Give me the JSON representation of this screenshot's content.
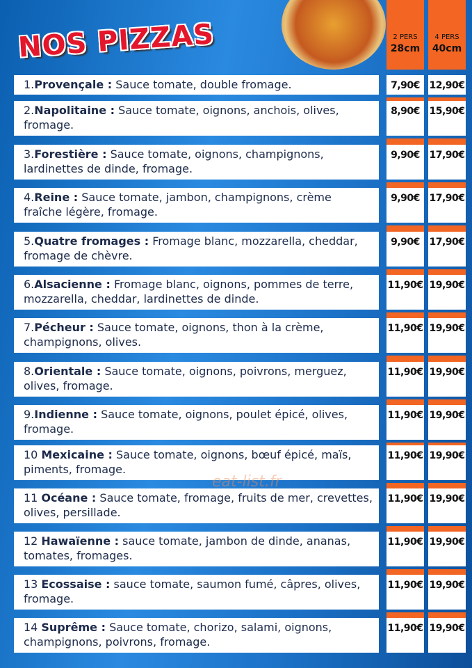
{
  "header": {
    "title": "NOS PIZZAS",
    "columns": [
      {
        "line1": "2 PERS",
        "line2": "28cm"
      },
      {
        "line1": "4 PERS",
        "line2": "40cm"
      }
    ]
  },
  "watermark": "eat-list.fr",
  "items": [
    {
      "number": "1.",
      "name": "Provençale :",
      "description": "Sauce tomate, double fromage.",
      "price_2": "7,90€",
      "price_4": "12,90€"
    },
    {
      "number": "2.",
      "name": "Napolitaine :",
      "description": "Sauce tomate, oignons, anchois, olives, fromage.",
      "price_2": "8,90€",
      "price_4": "15,90€"
    },
    {
      "number": "3.",
      "name": "Forestière :",
      "description": "Sauce tomate, oignons, champignons, lardinettes de dinde, fromage.",
      "price_2": "9,90€",
      "price_4": "17,90€"
    },
    {
      "number": "4.",
      "name": "Reine :",
      "description": "Sauce tomate, jambon, champignons, crème fraîche légère, fromage.",
      "price_2": "9,90€",
      "price_4": "17,90€"
    },
    {
      "number": "5.",
      "name": "Quatre fromages :",
      "description": "Fromage blanc, mozzarella, cheddar, fromage de chèvre.",
      "price_2": "9,90€",
      "price_4": "17,90€"
    },
    {
      "number": "6.",
      "name": "Alsacienne :",
      "description": "Fromage blanc, oignons, pommes de terre, mozzarella, cheddar, lardinettes de dinde.",
      "price_2": "11,90€",
      "price_4": "19,90€"
    },
    {
      "number": "7.",
      "name": "Pécheur :",
      "description": "Sauce tomate, oignons, thon à la crème, champignons, olives.",
      "price_2": "11,90€",
      "price_4": "19,90€"
    },
    {
      "number": "8.",
      "name": "Orientale :",
      "description": "Sauce tomate, oignons, poivrons, merguez, olives, fromage.",
      "price_2": "11,90€",
      "price_4": "19,90€"
    },
    {
      "number": "9.",
      "name": "Indienne :",
      "description": "Sauce tomate, oignons, poulet épicé, olives, fromage.",
      "price_2": "11,90€",
      "price_4": "19,90€"
    },
    {
      "number": "10",
      "name": "Mexicaine :",
      "description": "Sauce tomate, oignons, bœuf épicé, maïs, piments, fromage.",
      "price_2": "11,90€",
      "price_4": "19,90€"
    },
    {
      "number": "11",
      "name": "Océane :",
      "description": "Sauce tomate, fromage, fruits de mer, crevettes, olives, persillade.",
      "price_2": "11,90€",
      "price_4": "19,90€"
    },
    {
      "number": "12",
      "name": "Hawaïenne :",
      "description": "sauce tomate, jambon de dinde, ananas, tomates, fromages.",
      "price_2": "11,90€",
      "price_4": "19,90€"
    },
    {
      "number": "13",
      "name": "Ecossaise :",
      "description": "sauce tomate, saumon fumé, câpres, olives, fromage.",
      "price_2": "11,90€",
      "price_4": "19,90€"
    },
    {
      "number": "14",
      "name": "Suprême :",
      "description": "Sauce tomate, chorizo, salami, oignons, champignons, poivrons, fromage.",
      "price_2": "11,90€",
      "price_4": "19,90€"
    }
  ]
}
